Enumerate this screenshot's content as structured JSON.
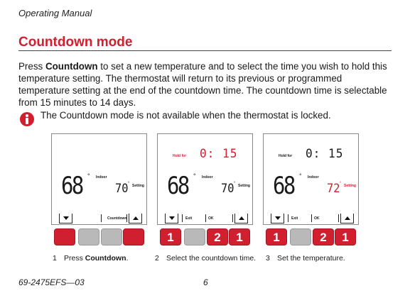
{
  "header": {
    "title": "Operating Manual"
  },
  "section": {
    "title": "Countdown mode"
  },
  "intro": {
    "prefix": "Press ",
    "keyword": "Countdown",
    "rest": " to set a new temperature and to select the time you wish to hold this temperature setting. The thermostat will return to its previous or programmed temperature setting at the end of the countdown time. The countdown time is selectable from 15 minutes to 14 days."
  },
  "note": {
    "icon": "info-icon",
    "text": "The Countdown mode is not available when the thermostat is locked."
  },
  "panels": [
    {
      "indoor_temp": "68",
      "indoor_label": "Indoor",
      "setting_temp": "70",
      "setting_label": "Setting",
      "strip_label": "Countdown",
      "buttons": [
        "",
        "",
        "",
        ""
      ],
      "caption_num": "1",
      "caption_prefix": "Press ",
      "caption_bold": "Countdown",
      "caption_suffix": "."
    },
    {
      "hold_label": "Hold for",
      "hold_time": "0: 15",
      "indoor_temp": "68",
      "indoor_label": "Indoor",
      "setting_temp": "70",
      "setting_label": "Setting",
      "exit_label": "Exit",
      "ok_label": "OK",
      "buttons": [
        "1",
        "",
        "2",
        "1"
      ],
      "caption_num": "2",
      "caption_text": "Select the countdown time."
    },
    {
      "hold_label": "Hold for",
      "hold_time": "0: 15",
      "indoor_temp": "68",
      "indoor_label": "Indoor",
      "setting_temp": "72",
      "setting_label": "Setting",
      "exit_label": "Exit",
      "ok_label": "OK",
      "buttons": [
        "1",
        "",
        "2",
        "1"
      ],
      "caption_num": "3",
      "caption_text": "Set the temperature."
    }
  ],
  "footer": {
    "doc_number": "69-2475EFS—03",
    "page": "6"
  },
  "colors": {
    "accent": "#d01f2e",
    "button_gray": "#b9b9b9"
  }
}
